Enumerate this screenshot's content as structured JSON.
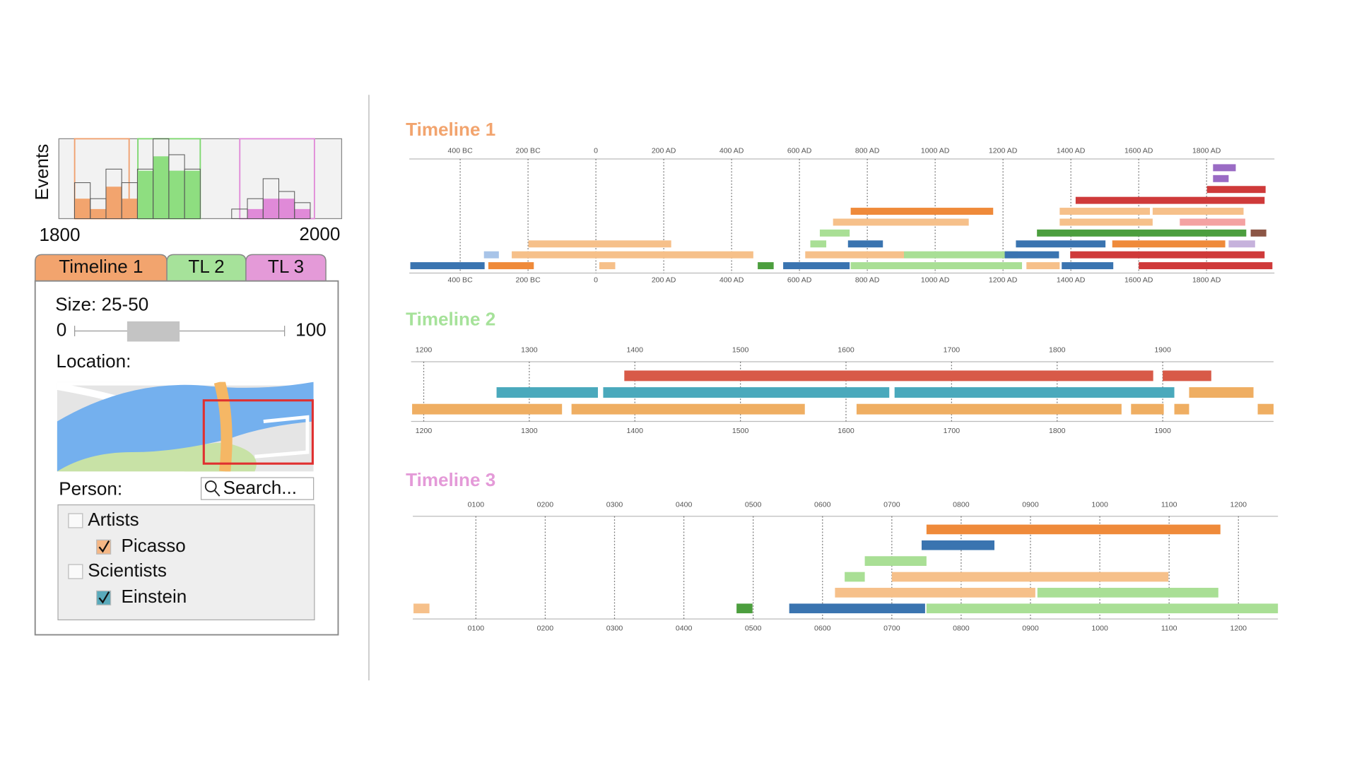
{
  "panel": {
    "histogram": {
      "y_label": "Events",
      "xlim": [
        1800,
        2000
      ],
      "ylim": [
        0,
        10
      ],
      "counts": [
        0,
        4.5,
        2.5,
        6.2,
        4.5,
        6.2,
        10,
        8,
        6.2,
        0,
        0,
        1.2,
        2.5,
        5,
        3.4,
        2,
        0,
        0
      ],
      "selected": [
        0,
        2.5,
        1.2,
        4,
        2.5,
        6,
        7.8,
        6,
        6,
        0,
        0,
        0,
        1.2,
        2.5,
        2.5,
        1.2,
        0,
        0
      ],
      "selected_colors": [
        null,
        "#f2a46e",
        "#f2a46e",
        "#f2a46e",
        "#f2a46e",
        "#8ede80",
        "#8ede80",
        "#8ede80",
        "#8ede80",
        null,
        null,
        "#e08ad8",
        "#e08ad8",
        "#e08ad8",
        "#e08ad8",
        "#e08ad8",
        null,
        null
      ]
    },
    "tabs": [
      "Timeline 1",
      "TL 2",
      "TL 3"
    ],
    "tab_colors": [
      "#f2a46e",
      "#a6e29a",
      "#e49ad8"
    ],
    "size": {
      "label": "Size: 25-50",
      "min": 0,
      "max": 100,
      "selected": [
        25,
        50
      ]
    },
    "location_label": "Location:",
    "person_label": "Person:",
    "search_placeholder": "Search...",
    "groups": [
      {
        "label": "Artists",
        "checked": false,
        "items": [
          {
            "label": "Picasso",
            "checked": true,
            "color": "#f5b785"
          }
        ]
      },
      {
        "label": "Scientists",
        "checked": false,
        "items": [
          {
            "label": "Einstein",
            "checked": true,
            "color": "#5aaabb"
          }
        ]
      }
    ]
  },
  "timelines": [
    {
      "title": "Timeline 1",
      "color": "#f2a46e",
      "xlim": [
        -550,
        2000
      ],
      "xticks": [
        {
          "value": -400,
          "label": "400 BC"
        },
        {
          "value": -200,
          "label": "200 BC"
        },
        0,
        {
          "value": 200,
          "label": "200 AD"
        },
        {
          "value": 400,
          "label": "400 AD"
        },
        {
          "value": 600,
          "label": "600 AD"
        },
        {
          "value": 800,
          "label": "800 AD"
        },
        {
          "value": 1000,
          "label": "1000 AD"
        },
        {
          "value": 1200,
          "label": "1200 AD"
        },
        {
          "value": 1400,
          "label": "1400 AD"
        },
        {
          "value": 1600,
          "label": "1600 AD"
        },
        {
          "value": 1800,
          "label": "1800 AD"
        }
      ],
      "lanes": [
        [
          {
            "start": 1819,
            "end": 1886,
            "color": "#9a6bc4"
          }
        ],
        [
          {
            "start": 1819,
            "end": 1865,
            "color": "#9a6bc4"
          }
        ],
        [
          {
            "start": 1801,
            "end": 1974,
            "color": "#cf3a3a"
          }
        ],
        [
          {
            "start": 1414,
            "end": 1971,
            "color": "#cf3a3a"
          }
        ],
        [
          {
            "start": 751,
            "end": 1171,
            "color": "#ef8a3a"
          },
          {
            "start": 1367,
            "end": 1633,
            "color": "#f6c08a"
          },
          {
            "start": 1641,
            "end": 1909,
            "color": "#f6c08a"
          }
        ],
        [
          {
            "start": 699,
            "end": 1099,
            "color": "#f6c08a"
          },
          {
            "start": 1367,
            "end": 1641,
            "color": "#f6c08a"
          },
          {
            "start": 1721,
            "end": 1914,
            "color": "#f4a2a2"
          }
        ],
        [
          {
            "start": 660,
            "end": 748,
            "color": "#a9df95"
          },
          {
            "start": 1300,
            "end": 1917,
            "color": "#4c9e3e"
          },
          {
            "start": 1930,
            "end": 1976,
            "color": "#8c5645"
          }
        ],
        [
          {
            "start": -199,
            "end": 222,
            "color": "#f6c08a"
          },
          {
            "start": 632,
            "end": 679,
            "color": "#a9df95"
          },
          {
            "start": 743,
            "end": 846,
            "color": "#3a74b0"
          },
          {
            "start": 1238,
            "end": 1502,
            "color": "#3a74b0"
          },
          {
            "start": 1522,
            "end": 1855,
            "color": "#ef8a3a"
          },
          {
            "start": 1865,
            "end": 1943,
            "color": "#c6b2dc"
          }
        ],
        [
          {
            "start": -330,
            "end": -286,
            "color": "#a8c4e8"
          },
          {
            "start": -248,
            "end": 464,
            "color": "#f6c08a"
          },
          {
            "start": 617,
            "end": 908,
            "color": "#f6c08a"
          },
          {
            "start": 908,
            "end": 1244,
            "color": "#a9df95"
          },
          {
            "start": 1205,
            "end": 1365,
            "color": "#3a74b0"
          },
          {
            "start": 1398,
            "end": 1971,
            "color": "#cf3a3a"
          }
        ],
        [
          {
            "start": -547,
            "end": -328,
            "color": "#3a74b0"
          },
          {
            "start": -317,
            "end": -183,
            "color": "#ef8a3a"
          },
          {
            "start": 10,
            "end": 57,
            "color": "#f6c08a"
          },
          {
            "start": 477,
            "end": 524,
            "color": "#4c9e3e"
          },
          {
            "start": 552,
            "end": 748,
            "color": "#3a74b0"
          },
          {
            "start": 751,
            "end": 1256,
            "color": "#a9df95"
          },
          {
            "start": 1269,
            "end": 1367,
            "color": "#f6c08a"
          },
          {
            "start": 1373,
            "end": 1525,
            "color": "#3a74b0"
          },
          {
            "start": 1600,
            "end": 1994,
            "color": "#cf3a3a"
          }
        ]
      ]
    },
    {
      "title": "Timeline 2",
      "color": "#a6e29a",
      "xlim": [
        1188,
        2005
      ],
      "xticks": [
        1200,
        1300,
        1400,
        1500,
        1600,
        1700,
        1800,
        1900
      ],
      "lanes": [
        [
          {
            "start": 1390,
            "end": 1891,
            "color": "#d85a48"
          },
          {
            "start": 1900,
            "end": 1946,
            "color": "#d85a48"
          }
        ],
        [
          {
            "start": 1269,
            "end": 1365,
            "color": "#4aa9bc"
          },
          {
            "start": 1370,
            "end": 1641,
            "color": "#4aa9bc"
          },
          {
            "start": 1646,
            "end": 1911,
            "color": "#4aa9bc"
          },
          {
            "start": 1925,
            "end": 1986,
            "color": "#efae62"
          }
        ],
        [
          {
            "start": 1189,
            "end": 1331,
            "color": "#efae62"
          },
          {
            "start": 1340,
            "end": 1561,
            "color": "#efae62"
          },
          {
            "start": 1610,
            "end": 1861,
            "color": "#efae62"
          },
          {
            "start": 1870,
            "end": 1901,
            "color": "#efae62"
          },
          {
            "start": 1911,
            "end": 1925,
            "color": "#efae62"
          },
          {
            "start": 1990,
            "end": 2005,
            "color": "#efae62"
          }
        ]
      ]
    },
    {
      "title": "Timeline 3",
      "color": "#e49ad8",
      "xlim": [
        9,
        1257
      ],
      "xticks": [
        {
          "value": 100,
          "label": "0100"
        },
        {
          "value": 200,
          "label": "0200"
        },
        {
          "value": 300,
          "label": "0300"
        },
        {
          "value": 400,
          "label": "0400"
        },
        {
          "value": 500,
          "label": "0500"
        },
        {
          "value": 600,
          "label": "0600"
        },
        {
          "value": 700,
          "label": "0700"
        },
        {
          "value": 800,
          "label": "0800"
        },
        {
          "value": 900,
          "label": "0900"
        },
        1000,
        1100,
        1200
      ],
      "lanes": [
        [
          {
            "start": 750,
            "end": 1174,
            "color": "#ef8a3a"
          }
        ],
        [
          {
            "start": 743,
            "end": 848,
            "color": "#3a74b0"
          }
        ],
        [
          {
            "start": 661,
            "end": 750,
            "color": "#a9df95"
          }
        ],
        [
          {
            "start": 632,
            "end": 661,
            "color": "#a9df95"
          },
          {
            "start": 700,
            "end": 1099,
            "color": "#f6c08a"
          }
        ],
        [
          {
            "start": 618,
            "end": 907,
            "color": "#f6c08a"
          },
          {
            "start": 910,
            "end": 1171,
            "color": "#a9df95"
          }
        ],
        [
          {
            "start": 10,
            "end": 33,
            "color": "#f6c08a"
          },
          {
            "start": 476,
            "end": 499,
            "color": "#4c9e3e"
          },
          {
            "start": 552,
            "end": 748,
            "color": "#3a74b0"
          },
          {
            "start": 750,
            "end": 1257,
            "color": "#a9df95"
          }
        ]
      ]
    }
  ]
}
